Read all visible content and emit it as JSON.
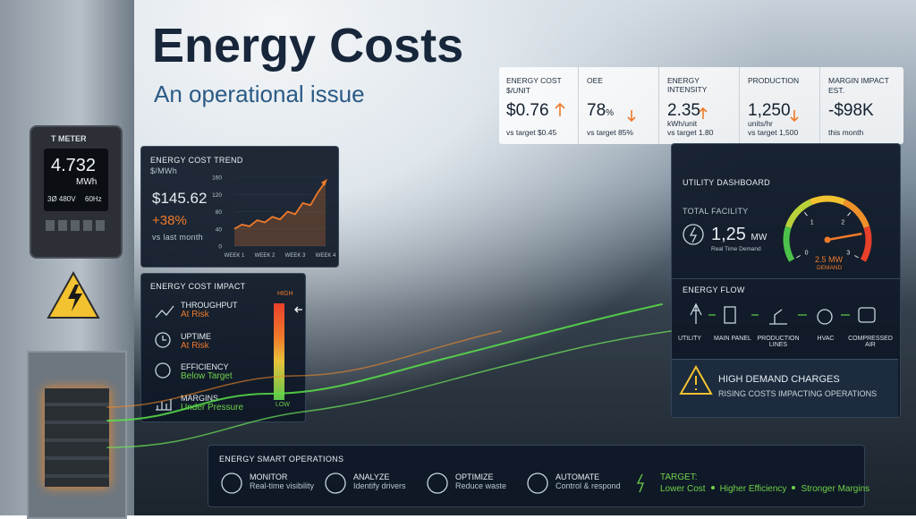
{
  "header": {
    "title": "Energy Costs",
    "subtitle": "An operational issue"
  },
  "kpis": [
    {
      "label": "ENERGY COST",
      "sublabel": "$/UNIT",
      "value": "$0.76",
      "note": "vs target $0.45"
    },
    {
      "label": "OEE",
      "value": "78",
      "unit": "%",
      "note": "vs target 85%"
    },
    {
      "label": "ENERGY INTENSITY",
      "value": "2.35",
      "unit": "kWh/unit",
      "note": "vs target 1.80"
    },
    {
      "label": "PRODUCTION",
      "value": "1,250",
      "unit": "units/hr",
      "note": "vs target 1,500"
    },
    {
      "label": "MARGIN IMPACT",
      "sublabel": "EST.",
      "value": "-$98K",
      "note": "this month"
    }
  ],
  "meter": {
    "brand": "T METER",
    "reading": "4.732",
    "unit": "MWh",
    "phase": "3Ø 480V",
    "frequency": "60Hz"
  },
  "trend": {
    "title": "ENERGY COST TREND",
    "unit": "$/MWh",
    "value": "$145.62",
    "change": "+38%",
    "note": "vs last month"
  },
  "chart_data": {
    "type": "line",
    "categories": [
      "WEEK 1",
      null,
      null,
      null,
      "WEEK 2",
      null,
      null,
      null,
      "WEEK 3",
      null,
      null,
      null,
      "WEEK 4"
    ],
    "values": [
      40,
      50,
      46,
      60,
      55,
      68,
      62,
      80,
      74,
      100,
      95,
      125,
      150
    ],
    "color": "#f07a2a",
    "ylim": [
      0,
      160
    ],
    "yticks": [
      0,
      40,
      80,
      120,
      160
    ]
  },
  "impact": {
    "title": "ENERGY COST IMPACT",
    "high": "HIGH",
    "low": "LOW",
    "items": [
      {
        "label": "THROUGHPUT",
        "status": "At Risk"
      },
      {
        "label": "UPTIME",
        "status": "At Risk"
      },
      {
        "label": "EFFICIENCY",
        "status": "Below Target"
      },
      {
        "label": "MARGINS",
        "status": "Under Pressure"
      }
    ]
  },
  "utility": {
    "title": "UTILITY DASHBOARD",
    "facility_label": "TOTAL FACILITY",
    "demand": "1,25",
    "demand_unit": "MW",
    "demand_caption": "Real Time Demand",
    "gauge": {
      "range": [
        0,
        3
      ],
      "ticks": [
        0,
        1,
        2,
        3
      ],
      "value": 2.5,
      "value_label": "2.5 MW",
      "caption": "DEMAND"
    }
  },
  "flow": {
    "title": "ENERGY FLOW",
    "nodes": [
      "UTILITY",
      "MAIN PANEL",
      "PRODUCTION LINES",
      "HVAC",
      "COMPRESSED AIR"
    ]
  },
  "alert": {
    "title": "HIGH DEMAND CHARGES",
    "message": "RISING COSTS IMPACTING OPERATIONS"
  },
  "operations": {
    "title": "ENERGY SMART OPERATIONS",
    "steps": [
      {
        "label": "MONITOR",
        "detail": "Real-time visibility"
      },
      {
        "label": "ANALYZE",
        "detail": "Identify drivers"
      },
      {
        "label": "OPTIMIZE",
        "detail": "Reduce waste"
      },
      {
        "label": "AUTOMATE",
        "detail": "Control & respond"
      }
    ],
    "target_label": "TARGET:",
    "targets": [
      "Lower Cost",
      "Higher Efficiency",
      "Stronger Margins"
    ]
  }
}
